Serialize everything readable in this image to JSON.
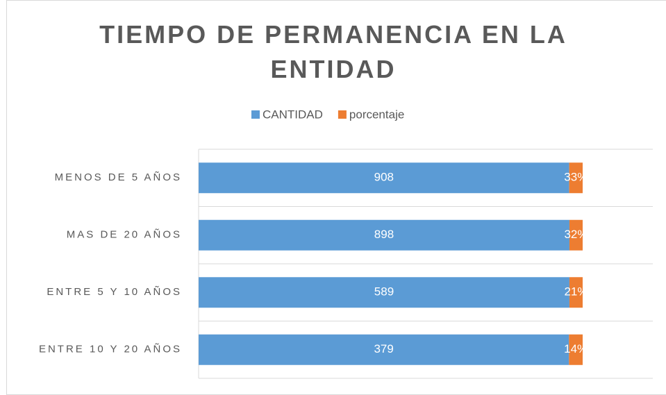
{
  "chart_data": {
    "type": "bar",
    "stacking": "percent",
    "orientation": "horizontal",
    "title": "TIEMPO DE PERMANENCIA EN LA ENTIDAD",
    "categories": [
      "MENOS DE 5 AÑOS",
      "MAS DE 20 AÑOS",
      "ENTRE 5 Y 10 AÑOS",
      "ENTRE 10 Y 20 AÑOS"
    ],
    "series": [
      {
        "name": "CANTIDAD",
        "color": "#5b9bd5",
        "values": [
          908,
          898,
          589,
          379
        ]
      },
      {
        "name": "porcentaje",
        "color": "#ed7d31",
        "values": [
          33,
          32,
          21,
          14
        ],
        "value_labels": [
          "33%",
          "32%",
          "21%",
          "14%"
        ]
      }
    ],
    "legend": "top"
  }
}
